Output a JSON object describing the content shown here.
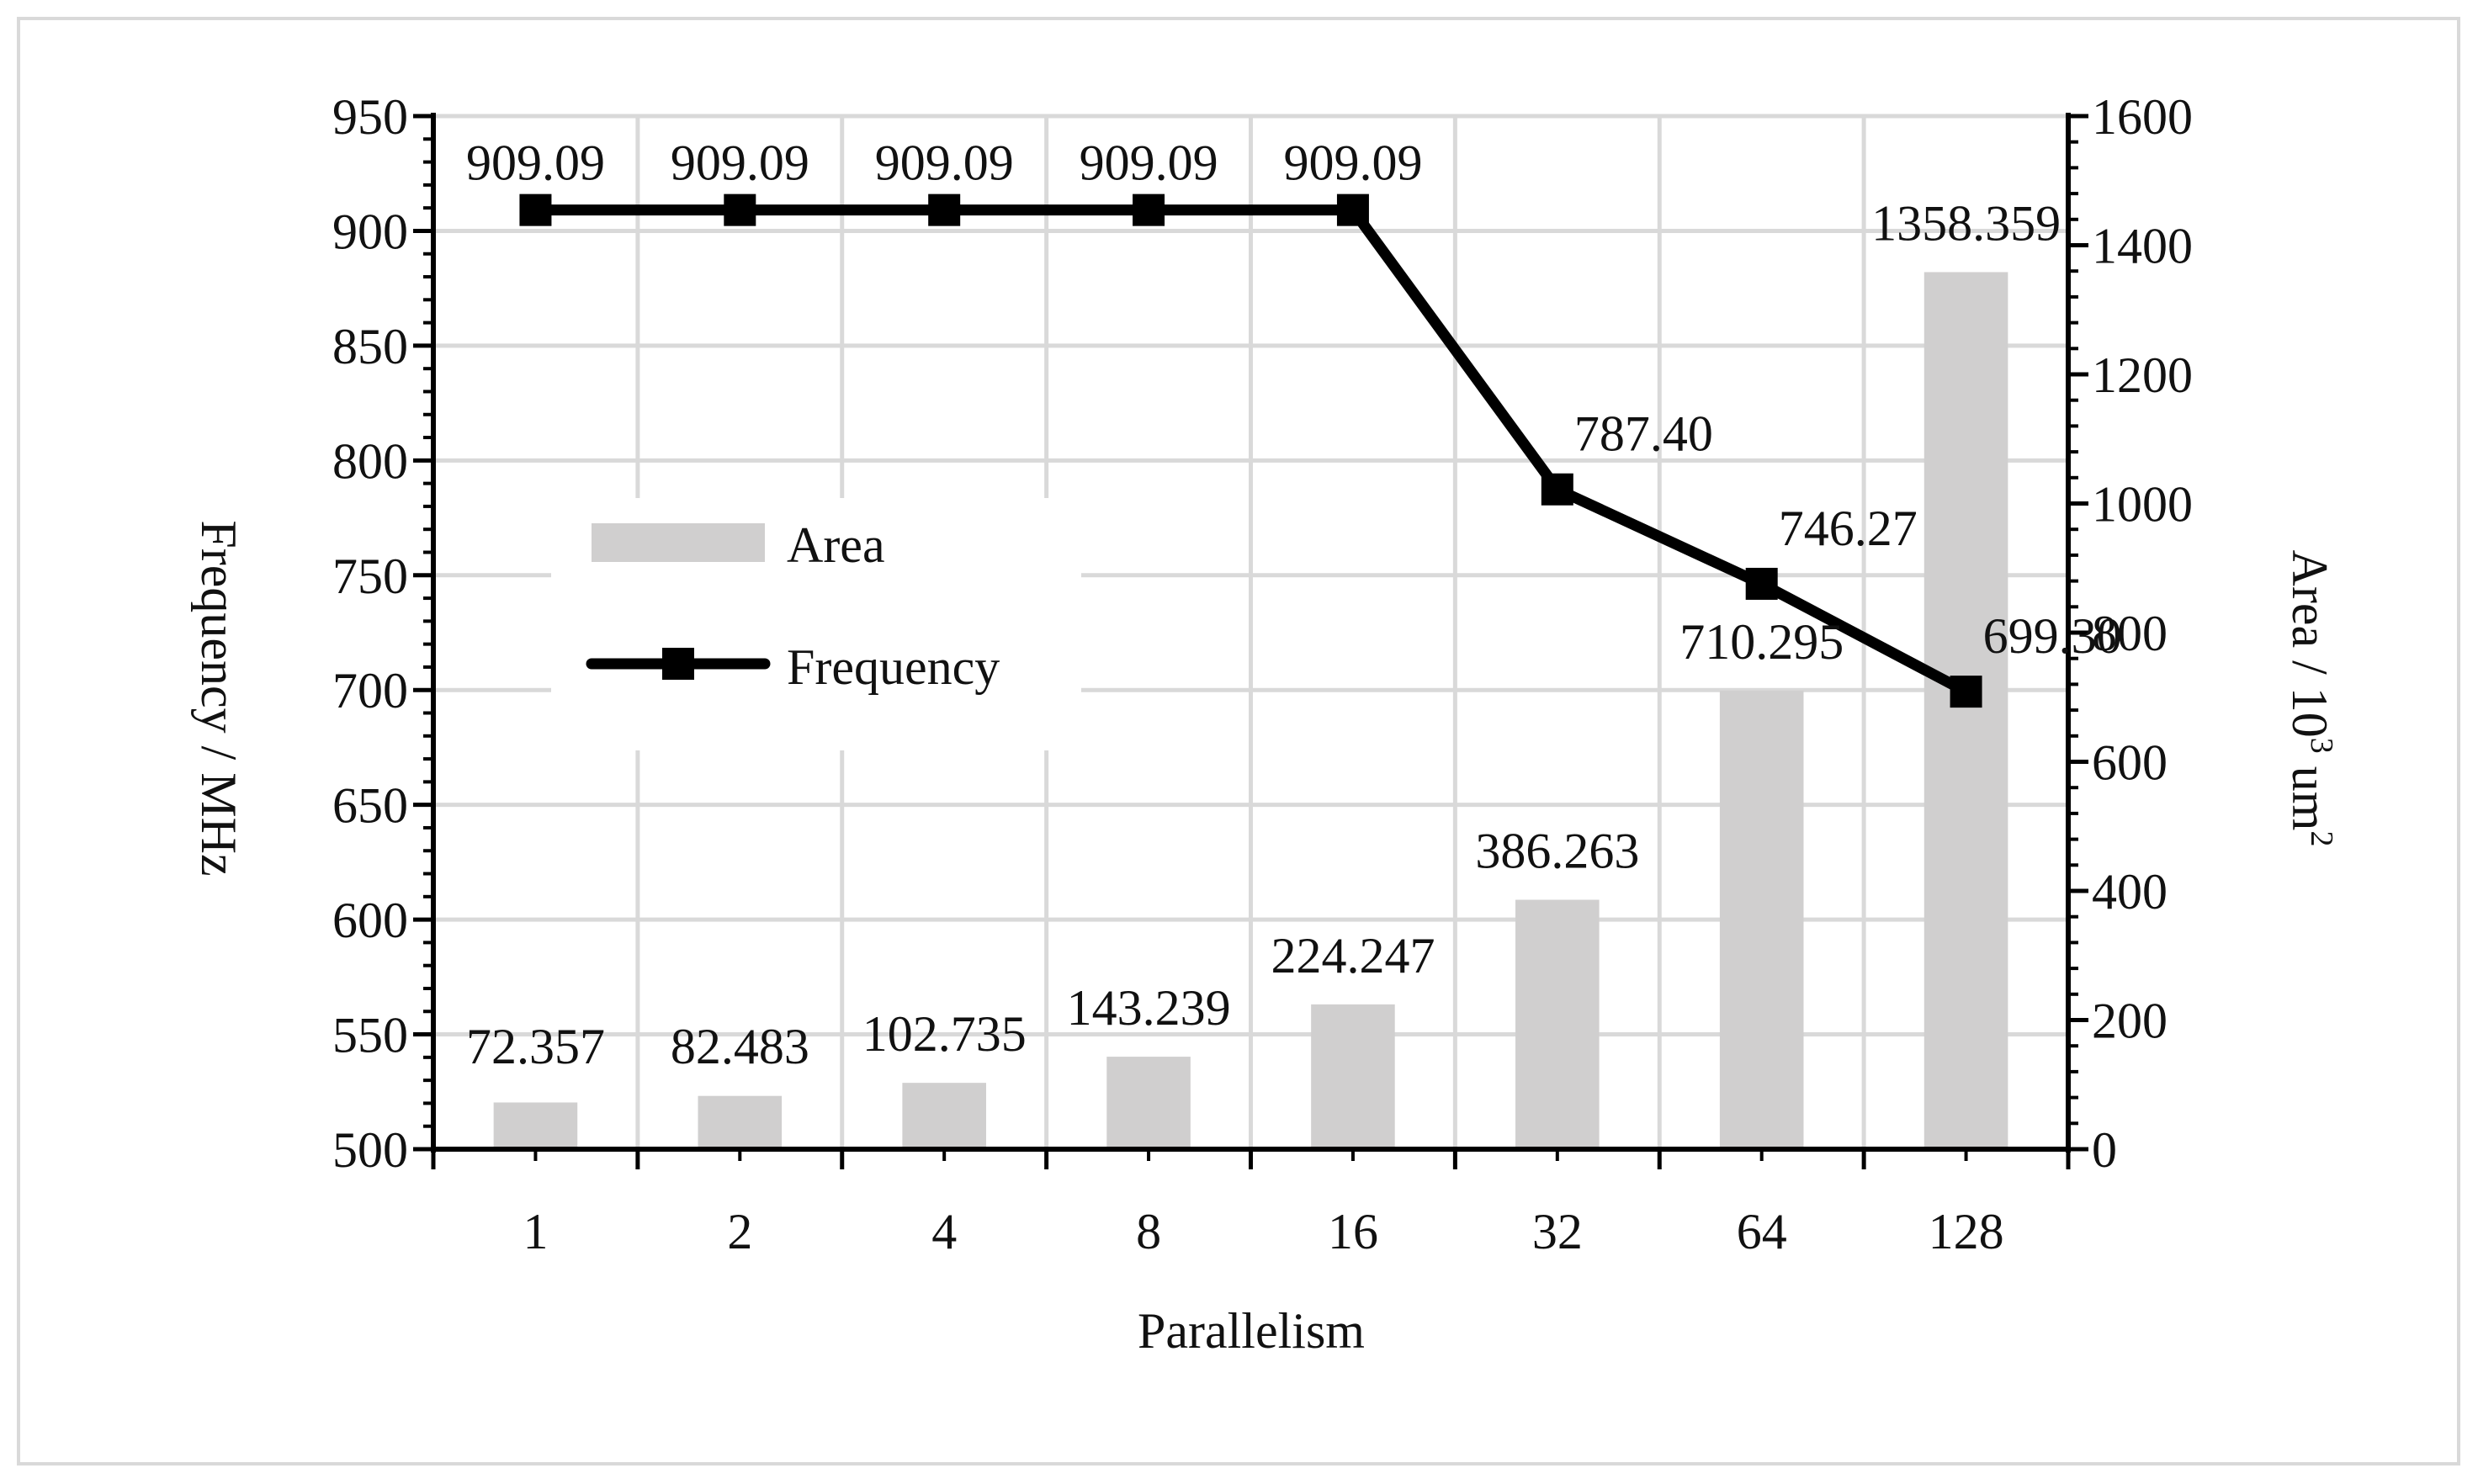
{
  "chart_data": {
    "type": "bar",
    "categories": [
      "1",
      "2",
      "4",
      "8",
      "16",
      "32",
      "64",
      "128"
    ],
    "series": [
      {
        "name": "Area",
        "type": "bar",
        "axis": "right",
        "values": [
          72.357,
          82.483,
          102.735,
          143.239,
          224.247,
          386.263,
          710.295,
          1358.359
        ],
        "labels": [
          "72.357",
          "82.483",
          "102.735",
          "143.239",
          "224.247",
          "386.263",
          "710.295",
          "1358.359"
        ],
        "color": "#d0cfcf"
      },
      {
        "name": "Frequency",
        "type": "line",
        "axis": "left",
        "values": [
          909.09,
          909.09,
          909.09,
          909.09,
          909.09,
          787.4,
          746.27,
          699.3
        ],
        "labels": [
          "909.09",
          "909.09",
          "909.09",
          "909.09",
          "909.09",
          "787.40",
          "746.27",
          "699.30"
        ],
        "color": "#000000",
        "marker": "square"
      }
    ],
    "xlabel": "Parallelism",
    "ylabel_left": "Frequency / MHz",
    "ylabel_right_parts": {
      "base": "Area / 10",
      "sup1": "3",
      "mid": " um",
      "sup2": "2"
    },
    "ylim_left": [
      500,
      950
    ],
    "yticks_left": [
      500,
      550,
      600,
      650,
      700,
      750,
      800,
      850,
      900,
      950
    ],
    "ylim_right": [
      0,
      1600
    ],
    "yticks_right": [
      0,
      200,
      400,
      600,
      800,
      1000,
      1200,
      1400,
      1600
    ],
    "grid": true,
    "legend_placement": "center-left"
  }
}
